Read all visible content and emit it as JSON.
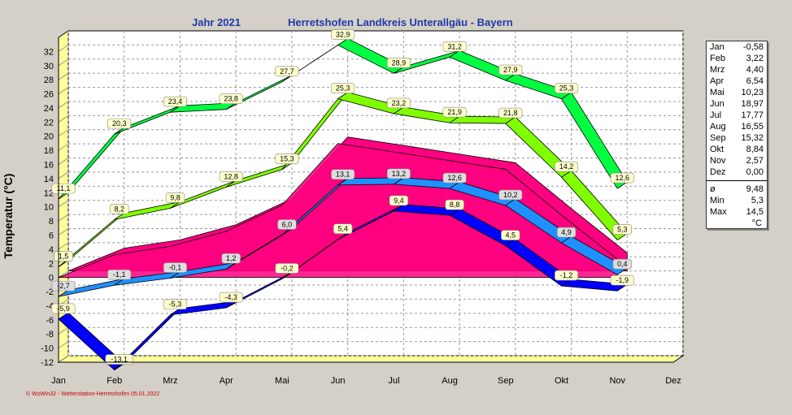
{
  "header": {
    "year": "Jahr  2021",
    "station": "Herretshofen Landkreis Unterallgäu - Bayern"
  },
  "footer": "© WsWin32 - Wetterstation-Herretshofen  05.01.2022",
  "legend": {
    "months": [
      {
        "m": "Jan",
        "v": "-0,58"
      },
      {
        "m": "Feb",
        "v": "3,22"
      },
      {
        "m": "Mrz",
        "v": "4,40"
      },
      {
        "m": "Apr",
        "v": "6,54"
      },
      {
        "m": "Mai",
        "v": "10,23"
      },
      {
        "m": "Jun",
        "v": "18,97"
      },
      {
        "m": "Jul",
        "v": "17,77"
      },
      {
        "m": "Aug",
        "v": "16,55"
      },
      {
        "m": "Sep",
        "v": "15,32"
      },
      {
        "m": "Okt",
        "v": "8,84"
      },
      {
        "m": "Nov",
        "v": "2,57"
      },
      {
        "m": "Dez",
        "v": "0,00"
      }
    ],
    "stats": [
      {
        "k": "ø",
        "v": "9,48"
      },
      {
        "k": "Min",
        "v": "5,3"
      },
      {
        "k": "Max",
        "v": "14,5"
      }
    ],
    "unit": "°C"
  },
  "colors": {
    "background": "#d4d0c8",
    "plot": "#ffffff",
    "floor": "#ffff99",
    "max_abs": "#00ff40",
    "max_avg": "#80ff00",
    "mean_area": "#ff0080",
    "min_avg": "#1e90ff",
    "min_abs": "#0000ff",
    "title": "#1f3aa8"
  },
  "chart_data": {
    "type": "line",
    "ylabel": "Temperatur  (°C)",
    "ylim": [
      -12,
      34
    ],
    "yticks": [
      -12,
      -10,
      -8,
      -6,
      -4,
      -2,
      0,
      2,
      4,
      6,
      8,
      10,
      12,
      14,
      16,
      18,
      20,
      22,
      24,
      26,
      28,
      30,
      32
    ],
    "categories": [
      "Jan",
      "Feb",
      "Mrz",
      "Apr",
      "Mai",
      "Jun",
      "Jul",
      "Aug",
      "Sep",
      "Okt",
      "Nov",
      "Dez"
    ],
    "grid": true,
    "series": [
      {
        "key": "max_abs",
        "values": [
          11.1,
          20.3,
          23.4,
          23.8,
          27.7,
          32.9,
          28.9,
          31.2,
          27.9,
          25.3,
          12.6,
          null
        ],
        "labels": [
          "11,1",
          "20,3",
          "23,4",
          "23,8",
          "27,7",
          "32,9",
          "28,9",
          "31,2",
          "27,9",
          "25,3",
          "12,6",
          ""
        ]
      },
      {
        "key": "max_avg",
        "values": [
          1.5,
          8.2,
          9.8,
          12.8,
          15.3,
          25.3,
          23.2,
          21.9,
          21.8,
          14.2,
          5.3,
          null
        ],
        "labels": [
          "1,5",
          "8,2",
          "9,8",
          "12,8",
          "15,3",
          "25,3",
          "23,2",
          "21,9",
          "21,8",
          "14,2",
          "5,3",
          ""
        ]
      },
      {
        "key": "mean_area",
        "values": [
          -0.58,
          3.22,
          4.4,
          6.54,
          10.23,
          18.97,
          17.77,
          16.55,
          15.32,
          8.84,
          2.57,
          null
        ],
        "labels": [
          "",
          "",
          "",
          "",
          "",
          "",
          "",
          "",
          "",
          "",
          "",
          ""
        ]
      },
      {
        "key": "min_avg",
        "values": [
          -2.7,
          -1.1,
          -0.1,
          1.2,
          6.0,
          13.1,
          13.2,
          12.6,
          10.2,
          4.9,
          0.4,
          null
        ],
        "labels": [
          "-2,7",
          "-1,1",
          "-0,1",
          "1,2",
          "6,0",
          "13,1",
          "13,2",
          "12,6",
          "10,2",
          "4,9",
          "0,4",
          ""
        ]
      },
      {
        "key": "min_abs",
        "values": [
          -5.9,
          -13.1,
          -5.3,
          -4.3,
          -0.2,
          5.4,
          9.4,
          8.8,
          4.5,
          -1.2,
          -1.9,
          null
        ],
        "labels": [
          "-5,9",
          "-13,1",
          "-5,3",
          "-4,3",
          "-0,2",
          "5,4",
          "9,4",
          "8,8",
          "4,5",
          "-1,2",
          "-1,9",
          ""
        ]
      }
    ]
  }
}
